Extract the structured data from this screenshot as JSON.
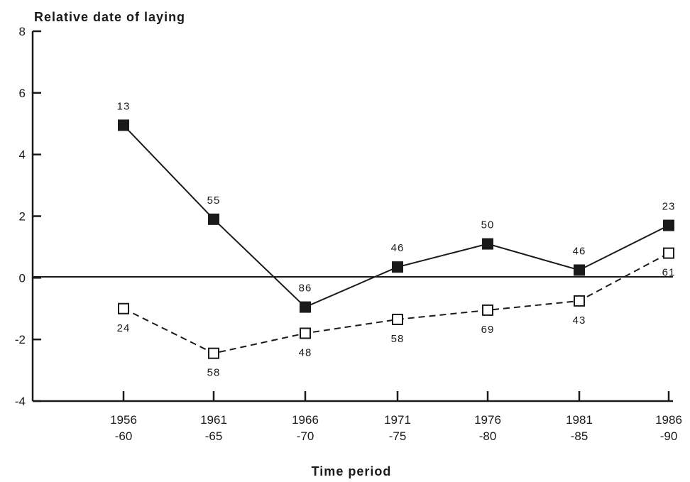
{
  "chart_data": {
    "type": "line",
    "ylabel": "Relative date of laying",
    "xlabel": "Time period",
    "ylim": [
      -4,
      8
    ],
    "yticks": [
      "8",
      "6",
      "4",
      "2",
      "0",
      "-2",
      "-4"
    ],
    "ytick_values": [
      8,
      6,
      4,
      2,
      0,
      -2,
      -4
    ],
    "categories": [
      [
        "1956",
        "-60"
      ],
      [
        "1961",
        "-65"
      ],
      [
        "1966",
        "-70"
      ],
      [
        "1971",
        "-75"
      ],
      [
        "1976",
        "-80"
      ],
      [
        "1981",
        "-85"
      ],
      [
        "1986",
        "-90"
      ]
    ],
    "reference_line": 0,
    "grid": false,
    "series": [
      {
        "style": "solid",
        "marker": "filled-square",
        "color": "#1a1a1a",
        "values": [
          4.95,
          1.9,
          -0.95,
          0.35,
          1.1,
          0.25,
          1.7
        ],
        "labels": [
          "13",
          "55",
          "86",
          "46",
          "50",
          "46",
          "23"
        ],
        "label_position": "above"
      },
      {
        "style": "dashed",
        "marker": "open-square",
        "color": "#1a1a1a",
        "values": [
          -1.0,
          -2.45,
          -1.8,
          -1.35,
          -1.05,
          -0.75,
          0.8
        ],
        "labels": [
          "24",
          "58",
          "48",
          "58",
          "69",
          "43",
          "61"
        ],
        "label_position": "below"
      }
    ]
  }
}
